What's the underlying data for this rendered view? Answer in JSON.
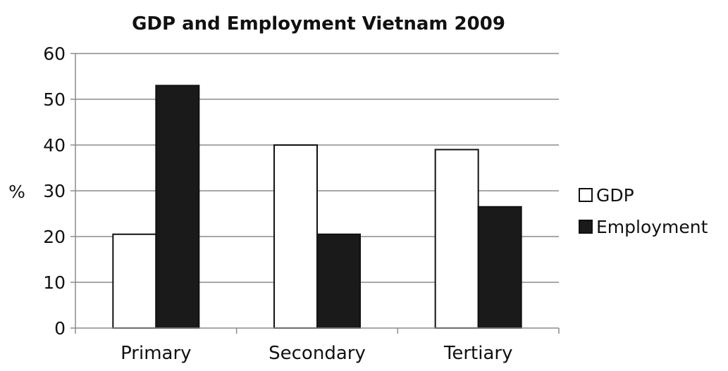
{
  "chart_data": {
    "type": "bar",
    "title": "GDP and Employment Vietnam 2009",
    "xlabel": "",
    "ylabel": "%",
    "categories": [
      "Primary",
      "Secondary",
      "Tertiary"
    ],
    "ylim": [
      0,
      60
    ],
    "yticks": [
      0,
      10,
      20,
      30,
      40,
      50,
      60
    ],
    "grid": true,
    "legend_position": "right",
    "series": [
      {
        "name": "GDP",
        "values": [
          20.5,
          40,
          39
        ],
        "color": "#ffffff"
      },
      {
        "name": "Employment",
        "values": [
          53,
          20.5,
          26.5
        ],
        "color": "#1a1a1a"
      }
    ]
  }
}
